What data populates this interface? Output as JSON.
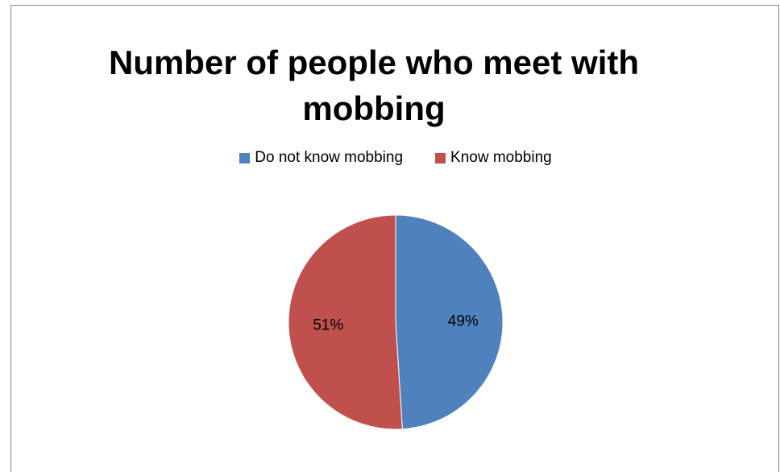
{
  "chart_data": {
    "type": "pie",
    "title": "Number of people who meet with mobbing",
    "categories": [
      "Do not know mobbing",
      "Know mobbing"
    ],
    "values": [
      49,
      51
    ],
    "labels": [
      "49%",
      "51%"
    ],
    "colors": [
      "#4F81BD",
      "#C0504D"
    ],
    "legend_position": "top"
  }
}
